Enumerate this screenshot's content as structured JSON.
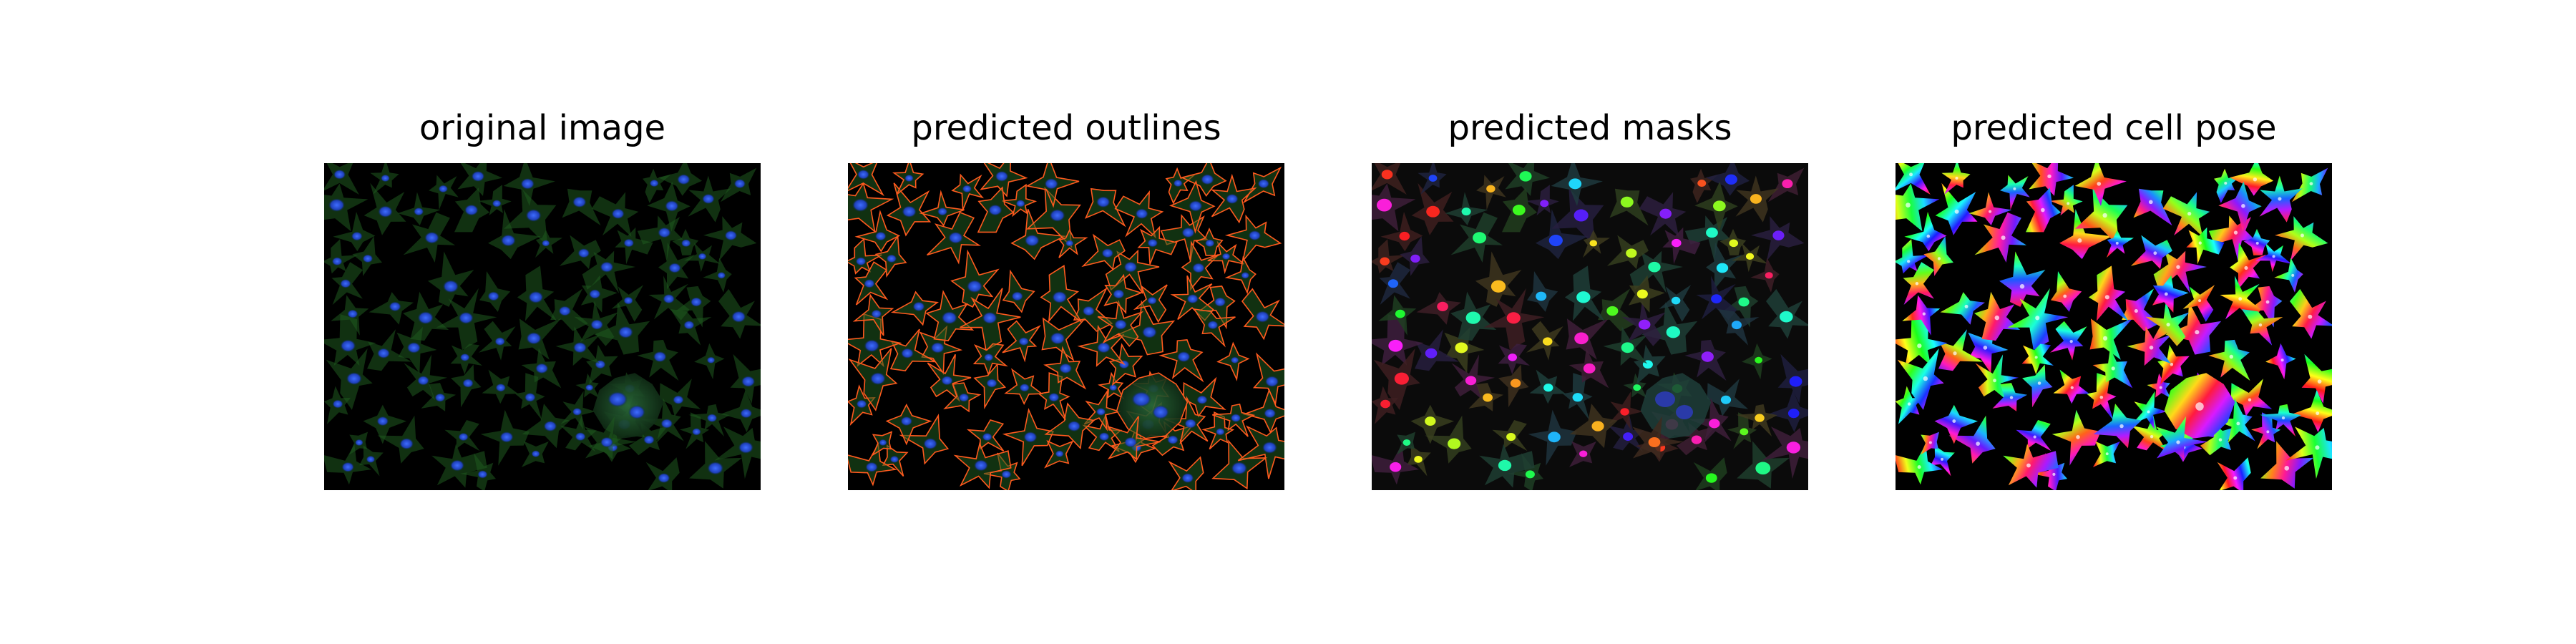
{
  "figure": {
    "panels": [
      {
        "id": "original",
        "title": "original image"
      },
      {
        "id": "outlines",
        "title": "predicted outlines"
      },
      {
        "id": "masks",
        "title": "predicted masks"
      },
      {
        "id": "pose",
        "title": "predicted cell pose"
      }
    ]
  },
  "colors": {
    "cell_body": "#1f5a1f",
    "nucleus": "#1e3fb8",
    "outline": "#ff5a1e",
    "background": "#000000"
  }
}
